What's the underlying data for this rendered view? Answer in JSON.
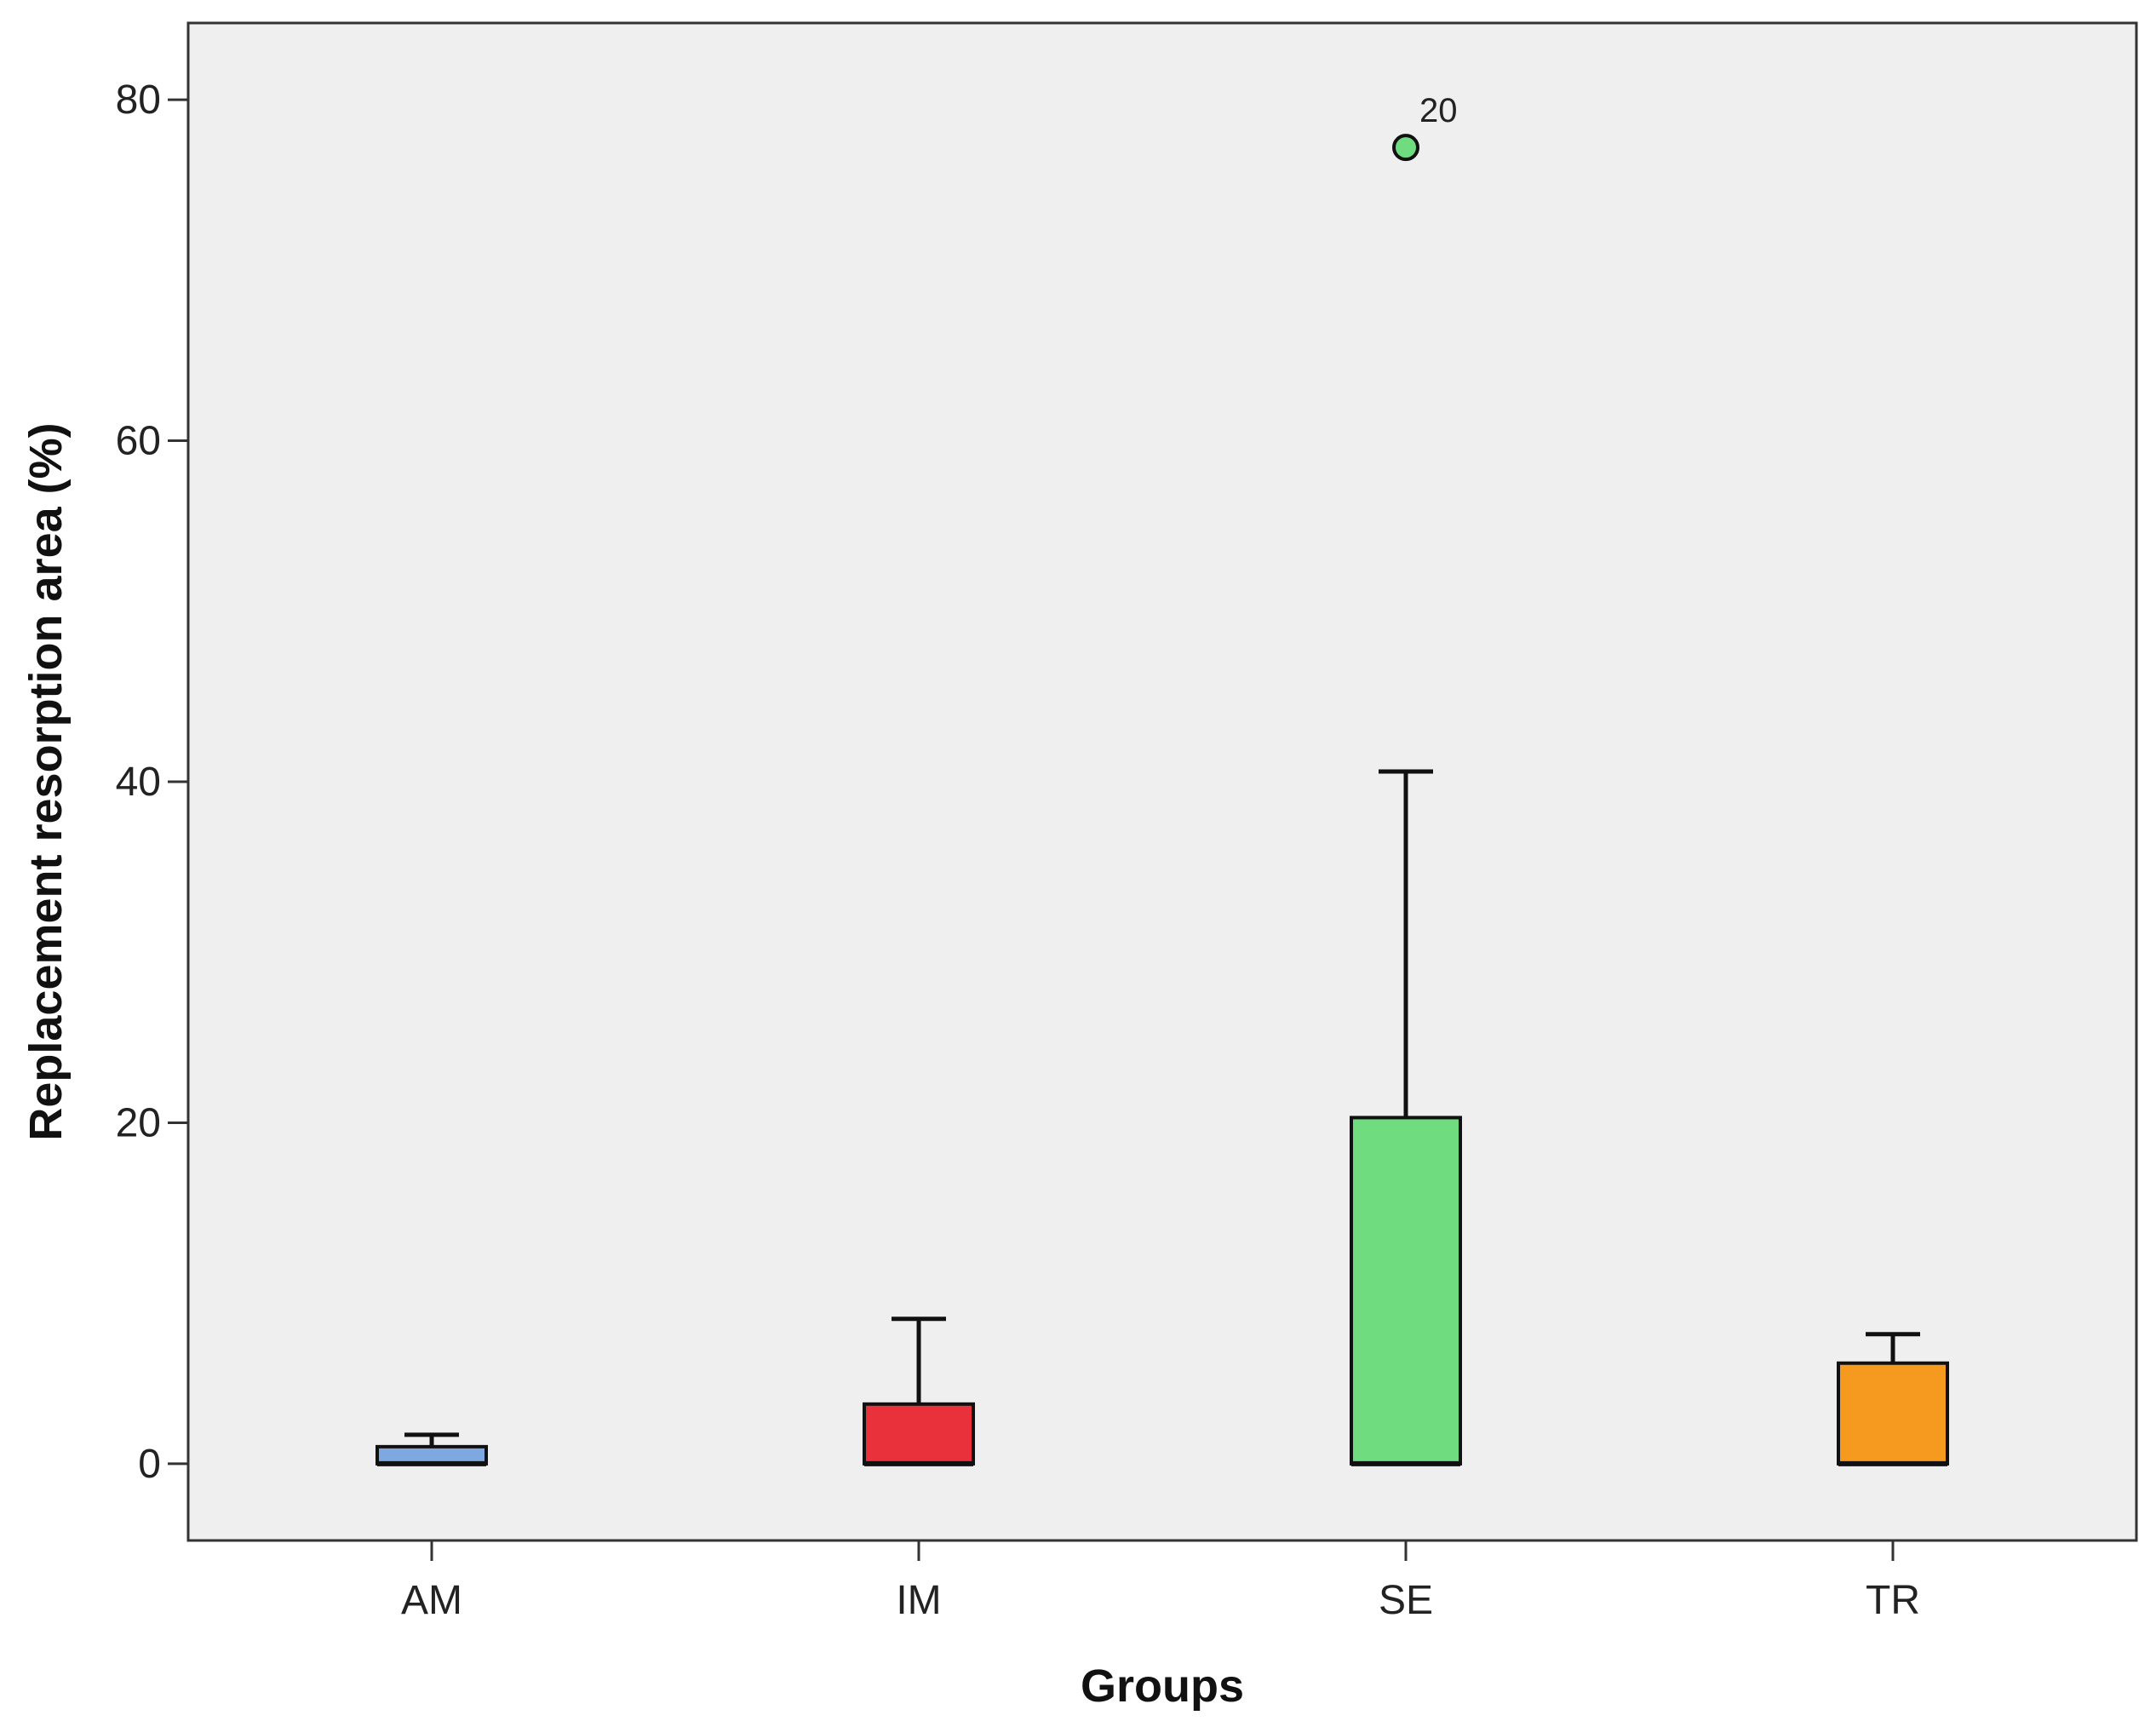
{
  "chart_data": {
    "type": "boxplot",
    "xlabel": "Groups",
    "ylabel": "Replacement resorption area (%)",
    "ylim": [
      -4.5,
      84.5
    ],
    "yticks": [
      0,
      20,
      40,
      60,
      80
    ],
    "grid": false,
    "background": "#efefef",
    "categories": [
      "AM",
      "IM",
      "SE",
      "TR"
    ],
    "boxes": [
      {
        "category": "AM",
        "min": 0,
        "q1": 0,
        "median": 0,
        "q3": 1.0,
        "max": 1.7,
        "color": "#7da9e0"
      },
      {
        "category": "IM",
        "min": 0,
        "q1": 0,
        "median": 0,
        "q3": 3.5,
        "max": 8.5,
        "color": "#e8313a"
      },
      {
        "category": "SE",
        "min": 0,
        "q1": 0,
        "median": 0,
        "q3": 20.3,
        "max": 40.6,
        "color": "#70dc80"
      },
      {
        "category": "TR",
        "min": 0,
        "q1": 0,
        "median": 0,
        "q3": 5.9,
        "max": 7.6,
        "color": "#f59a1f"
      }
    ],
    "outliers": [
      {
        "category": "SE",
        "value": 77.2,
        "label": "20"
      }
    ]
  }
}
